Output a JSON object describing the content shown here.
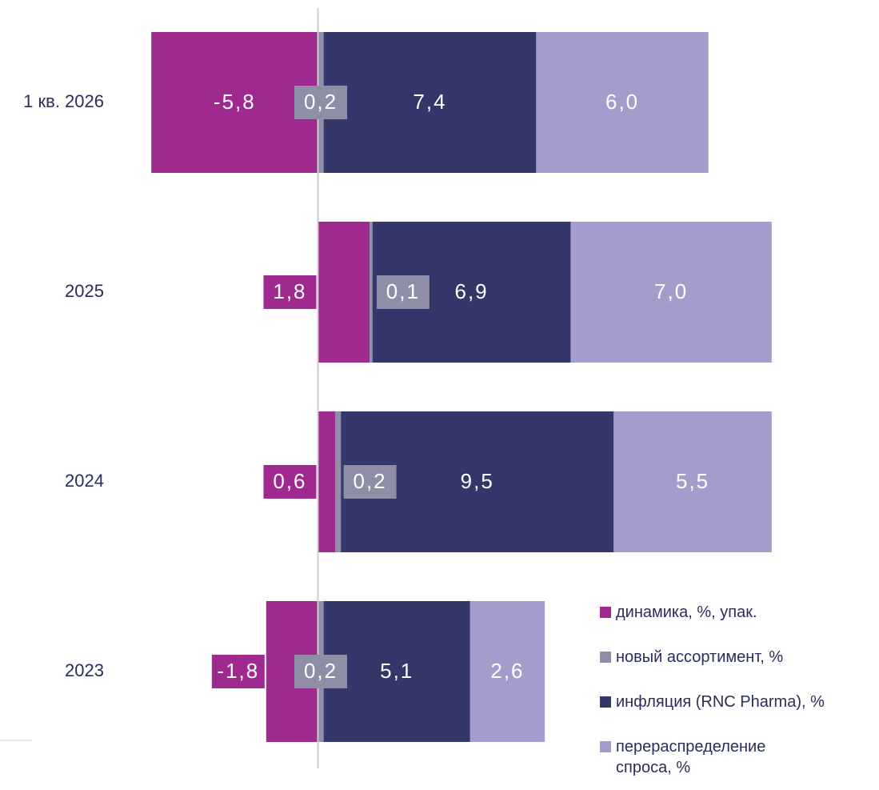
{
  "chart_data": {
    "type": "stacked_barh",
    "categories": [
      "1 кв. 2026",
      "2025",
      "2024",
      "2023"
    ],
    "series": [
      {
        "name": "динамика, %, упак.",
        "color": "#a0298f",
        "values": [
          -5.8,
          1.8,
          0.6,
          -1.8
        ],
        "value_labels": [
          "-5,8",
          "1,8",
          "0,6",
          "-1,8"
        ]
      },
      {
        "name": "новый ассортимент, %",
        "color": "#8e8fa6",
        "values": [
          0.2,
          0.1,
          0.2,
          0.2
        ],
        "value_labels": [
          "0,2",
          "0,1",
          "0,2",
          "0,2"
        ]
      },
      {
        "name": "инфляция (RNC Pharma), %",
        "color": "#33376a",
        "values": [
          7.4,
          6.9,
          9.5,
          5.1
        ],
        "value_labels": [
          "7,4",
          "6,9",
          "9,5",
          "5,1"
        ]
      },
      {
        "name": "перераспределение спроса, %",
        "color": "#a59ccc",
        "values": [
          6.0,
          7.0,
          5.5,
          2.6
        ],
        "value_labels": [
          "6,0",
          "7,0",
          "5,5",
          "2,6"
        ]
      }
    ],
    "xlim": [
      -6,
      16
    ]
  }
}
